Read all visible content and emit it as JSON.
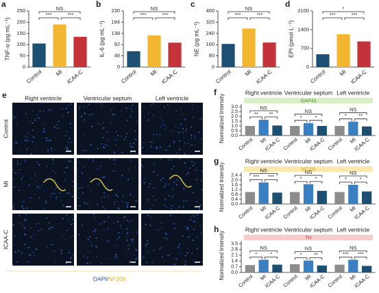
{
  "figure_e": {
    "panel_label": "e",
    "columns": [
      "Right ventricle",
      "Ventricular septum",
      "Left ventricle"
    ],
    "rows": [
      "Control",
      "MI",
      "ICAA-C"
    ],
    "caption": [
      "DAPI/",
      "NF200"
    ]
  },
  "chart_data": [
    {
      "type": "bar",
      "panel_label": "a",
      "y_label": "TNF-α (pg mL⁻¹)",
      "categories": [
        "Control",
        "MI",
        "ICAA-C"
      ],
      "values": [
        105,
        190,
        135
      ],
      "colors": [
        "#1d4f73",
        "#f2b631",
        "#c5333a"
      ],
      "ylim": [
        0,
        250
      ],
      "yticks": [
        0,
        50,
        100,
        150,
        200,
        250
      ],
      "significance": [
        "***",
        "***",
        "NS"
      ]
    },
    {
      "type": "bar",
      "panel_label": "b",
      "y_label": "IL-6 (pg mL⁻¹)",
      "categories": [
        "Control",
        "MI",
        "ICAA-C"
      ],
      "values": [
        65,
        130,
        100
      ],
      "colors": [
        "#1d4f73",
        "#f2b631",
        "#c5333a"
      ],
      "ylim": [
        0,
        230
      ],
      "yticks": [
        0,
        46,
        92,
        138,
        184,
        230
      ],
      "significance": [
        "***",
        "***",
        "NS"
      ]
    },
    {
      "type": "bar",
      "panel_label": "c",
      "y_label": "NE (pg mL⁻¹)",
      "categories": [
        "Control",
        "MI",
        "ICAA-C"
      ],
      "values": [
        165,
        275,
        175
      ],
      "colors": [
        "#1d4f73",
        "#f2b631",
        "#c5333a"
      ],
      "ylim": [
        0,
        400
      ],
      "yticks": [
        0,
        80,
        160,
        240,
        320,
        400
      ],
      "significance": [
        "***",
        "***",
        "NS"
      ]
    },
    {
      "type": "bar",
      "panel_label": "d",
      "y_label": "EPI (pmol L⁻¹)",
      "categories": [
        "Control",
        "MI",
        "ICAA-C"
      ],
      "values": [
        480,
        1230,
        960
      ],
      "colors": [
        "#1d4f73",
        "#f2b631",
        "#c5333a"
      ],
      "ylim": [
        0,
        2100
      ],
      "yticks": [
        0,
        700,
        1400,
        2100
      ],
      "significance": [
        "***",
        "***",
        "*"
      ]
    },
    {
      "type": "grouped-bar",
      "panel_label": "f",
      "y_label": "Normalized Intensity",
      "marker": "GAP43",
      "marker_color": "#d8eec6",
      "marker_text_color": "#4a8a2a",
      "categories": [
        "Control",
        "MI",
        "ICAA-C"
      ],
      "colors": [
        "#8c8c8c",
        "#3a7fc1",
        "#1d4f73"
      ],
      "groups": [
        {
          "name": "Right ventricle",
          "values": [
            1.0,
            1.65,
            1.05
          ],
          "significance": [
            "**",
            "**",
            "NS"
          ]
        },
        {
          "name": "Ventricular septum",
          "values": [
            1.0,
            1.3,
            1.0
          ],
          "significance": [
            "*",
            "*",
            "NS"
          ]
        },
        {
          "name": "Left ventricle",
          "values": [
            1.0,
            1.45,
            0.95
          ],
          "significance": [
            "*",
            "**",
            "NS"
          ]
        }
      ],
      "ylim": [
        0,
        3.0
      ],
      "yticks": [
        {
          "value": 0,
          "label": "0.0"
        },
        {
          "value": 0.5,
          "label": "0.5"
        },
        {
          "value": 1.0,
          "label": "1.0"
        },
        {
          "value": 1.5,
          "label": "1.5"
        },
        {
          "value": 2.0,
          "label": "2.0"
        },
        {
          "value": 2.5,
          "label": "2.5"
        },
        {
          "value": 3.0,
          "label": "3.0"
        }
      ]
    },
    {
      "type": "grouped-bar",
      "panel_label": "g",
      "y_label": "Normalized Intensity",
      "marker": "NF200",
      "marker_color": "#fbe8ae",
      "marker_text_color": "#e0a800",
      "categories": [
        "Control",
        "MI",
        "ICAA-C"
      ],
      "colors": [
        "#8c8c8c",
        "#3a7fc1",
        "#1d4f73"
      ],
      "groups": [
        {
          "name": "Right ventricle",
          "values": [
            1.0,
            1.8,
            0.95
          ],
          "significance": [
            "***",
            "***",
            "NS"
          ]
        },
        {
          "name": "Ventricular septum",
          "values": [
            1.0,
            1.65,
            1.1
          ],
          "significance": [
            "*",
            "*",
            "NS"
          ]
        },
        {
          "name": "Left ventricle",
          "values": [
            1.0,
            1.6,
            1.05
          ],
          "significance": [
            "*",
            "*",
            "NS"
          ]
        }
      ],
      "ylim": [
        0,
        2.4
      ],
      "yticks": [
        {
          "value": 0,
          "label": "0.0"
        },
        {
          "value": 0.4,
          "label": "0.4"
        },
        {
          "value": 0.8,
          "label": "0.8"
        },
        {
          "value": 1.2,
          "label": "1.2"
        },
        {
          "value": 1.6,
          "label": "1.6"
        },
        {
          "value": 2.0,
          "label": "2.0"
        },
        {
          "value": 2.4,
          "label": "2.4"
        }
      ]
    },
    {
      "type": "grouped-bar",
      "panel_label": "h",
      "y_label": "Normalized Intensity",
      "marker": "TH",
      "marker_color": "#f6cccc",
      "marker_text_color": "#d0342c",
      "categories": [
        "Control",
        "MI",
        "ICAA-C"
      ],
      "colors": [
        "#8c8c8c",
        "#3a7fc1",
        "#1d4f73"
      ],
      "groups": [
        {
          "name": "Right ventricle",
          "values": [
            0.9,
            1.55,
            0.95
          ],
          "significance": [
            "*",
            "*",
            "NS"
          ]
        },
        {
          "name": "Ventricular septum",
          "values": [
            1.0,
            1.45,
            0.85
          ],
          "significance": [
            "*",
            "**",
            "NS"
          ]
        },
        {
          "name": "Left ventricle",
          "values": [
            0.95,
            1.55,
            0.8
          ],
          "significance": [
            "***",
            "***",
            "NS"
          ]
        }
      ],
      "ylim": [
        0,
        3.5
      ],
      "yticks": [
        {
          "value": 0,
          "label": "0.0"
        },
        {
          "value": 0.7,
          "label": "0.7"
        },
        {
          "value": 1.4,
          "label": "1.4"
        },
        {
          "value": 2.1,
          "label": "2.1"
        },
        {
          "value": 2.8,
          "label": "2.8"
        },
        {
          "value": 3.5,
          "label": "3.5"
        }
      ]
    }
  ]
}
